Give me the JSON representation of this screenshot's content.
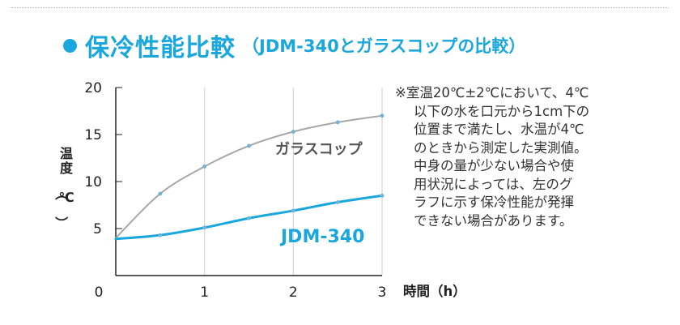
{
  "header": {
    "title": "保冷性能比較",
    "subtitle": "（JDM-340とガラスコップの比較）"
  },
  "note": {
    "lines": [
      "※室温20℃±2℃において、4℃",
      "以下の水を口元から1cm下の",
      "位置まで満たし、水温が4℃",
      "のときから測定した実測値。",
      "中身の量が少ない場合や使",
      "用状況によっては、左のグ",
      "ラフに示す保冷性能が発揮",
      "できない場合があります。"
    ]
  },
  "colors": {
    "accent": "#1aa7dd",
    "glass": "#a8a8a8",
    "marker": "#6fb4d6",
    "axis": "#222222",
    "grid": "#cfcfcf"
  },
  "chart_data": {
    "type": "line",
    "ylabel": "温度（℃）",
    "xlabel": "時間（h）",
    "xlim": [
      0,
      3
    ],
    "ylim": [
      0,
      20
    ],
    "x_ticks": [
      "0",
      "1",
      "2",
      "3"
    ],
    "y_ticks": [
      "5",
      "10",
      "15",
      "20"
    ],
    "grid": "vertical",
    "series": [
      {
        "name": "ガラスコップ",
        "x": [
          0,
          0.5,
          1,
          1.5,
          2,
          2.5,
          3
        ],
        "y": [
          4,
          8.7,
          11.6,
          13.8,
          15.3,
          16.3,
          17
        ]
      },
      {
        "name": "JDM-340",
        "x": [
          0,
          0.5,
          1,
          1.5,
          2,
          2.5,
          3
        ],
        "y": [
          3.9,
          4.3,
          5.1,
          6.1,
          6.9,
          7.8,
          8.5
        ]
      }
    ]
  }
}
